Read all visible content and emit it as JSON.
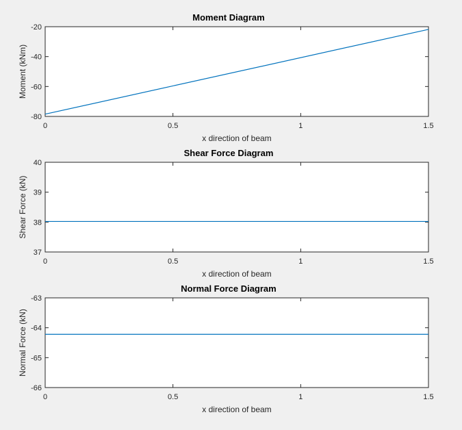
{
  "chart_data": [
    {
      "type": "line",
      "title": "Moment Diagram",
      "xlabel": "x direction of beam",
      "ylabel": "Moment (kNm)",
      "xlim": [
        0,
        1.5
      ],
      "ylim": [
        -80,
        -20
      ],
      "xticks": [
        0,
        0.5,
        1,
        1.5
      ],
      "xtick_labels": [
        "0",
        "0.5",
        "1",
        "1.5"
      ],
      "yticks": [
        -20,
        -40,
        -60,
        -80
      ],
      "ytick_labels": [
        "-20",
        "-40",
        "-60",
        "-80"
      ],
      "grid": false,
      "color": "#0072bd",
      "x": [
        0,
        1.5
      ],
      "y": [
        -78.5,
        -21.8
      ]
    },
    {
      "type": "line",
      "title": "Shear Force Diagram",
      "xlabel": "x direction of beam",
      "ylabel": "Shear Force (kN)",
      "xlim": [
        0,
        1.5
      ],
      "ylim": [
        37,
        40
      ],
      "xticks": [
        0,
        0.5,
        1,
        1.5
      ],
      "xtick_labels": [
        "0",
        "0.5",
        "1",
        "1.5"
      ],
      "yticks": [
        40,
        39,
        38,
        37
      ],
      "ytick_labels": [
        "40",
        "39",
        "38",
        "37"
      ],
      "grid": false,
      "color": "#0072bd",
      "x": [
        0,
        1.5
      ],
      "y": [
        38.02,
        38.02
      ]
    },
    {
      "type": "line",
      "title": "Normal Force Diagram",
      "xlabel": "x direction of beam",
      "ylabel": "Normal Force (kN)",
      "xlim": [
        0,
        1.5
      ],
      "ylim": [
        -66,
        -63
      ],
      "xticks": [
        0,
        0.5,
        1,
        1.5
      ],
      "xtick_labels": [
        "0",
        "0.5",
        "1",
        "1.5"
      ],
      "yticks": [
        -63,
        -64,
        -65,
        -66
      ],
      "ytick_labels": [
        "-63",
        "-64",
        "-65",
        "-66"
      ],
      "grid": false,
      "color": "#0072bd",
      "x": [
        0,
        1.5
      ],
      "y": [
        -64.22,
        -64.22
      ]
    }
  ]
}
